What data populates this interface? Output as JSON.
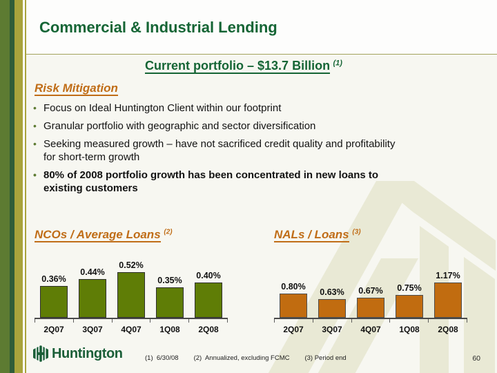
{
  "slide": {
    "title": "Commercial & Industrial Lending",
    "subtitle": "Current portfolio – $13.7 Billion",
    "subtitle_note": "(1)",
    "page_number": "60"
  },
  "risk_mitigation": {
    "heading": "Risk Mitigation",
    "bullets": [
      {
        "lines": [
          "Focus on Ideal Huntington Client within our footprint"
        ],
        "bold": false
      },
      {
        "lines": [
          "Granular portfolio with geographic and sector diversification"
        ],
        "bold": false
      },
      {
        "lines": [
          "Seeking measured growth – have not sacrificed credit quality and profitability",
          "for short-term growth"
        ],
        "bold": false
      },
      {
        "lines": [
          "80% of 2008 portfolio growth has been concentrated in new loans to",
          "existing customers"
        ],
        "bold": true
      }
    ]
  },
  "chart_data": [
    {
      "type": "bar",
      "title": "NCOs / Average Loans",
      "title_note": "(2)",
      "categories": [
        "2Q07",
        "3Q07",
        "4Q07",
        "1Q08",
        "2Q08"
      ],
      "values": [
        0.36,
        0.44,
        0.52,
        0.35,
        0.4
      ],
      "labels": [
        "0.36%",
        "0.44%",
        "0.52%",
        "0.35%",
        "0.40%"
      ],
      "ylim": [
        0,
        0.72
      ],
      "bar_color": "#5f7d06",
      "bar_border": "#2e2e2e",
      "legend": "none",
      "grid": false
    },
    {
      "type": "bar",
      "title": "NALs / Loans",
      "title_note": "(3)",
      "categories": [
        "2Q07",
        "3Q07",
        "4Q07",
        "1Q08",
        "2Q08"
      ],
      "values": [
        0.8,
        0.63,
        0.67,
        0.75,
        1.17
      ],
      "labels": [
        "0.80%",
        "0.63%",
        "0.67%",
        "0.75%",
        "1.17%"
      ],
      "ylim": [
        0,
        2.1
      ],
      "bar_color": "#c16c10",
      "bar_border": "#4d4d4d",
      "legend": "none",
      "grid": false
    }
  ],
  "logo": {
    "text": "Huntington"
  },
  "footnotes": [
    "(1)  6/30/08",
    "(2)  Annualized, excluding FCMC",
    "(3) Period end"
  ],
  "colors": {
    "title_green": "#156535",
    "heading_orange": "#c06d17",
    "stripe_olive": "#5d7b32",
    "stripe_dark_green": "#2f5c38",
    "stripe_yellow_olive": "#a8a33c",
    "watermark_olive": "#e9e9d5",
    "logo_green": "#1b5f38"
  }
}
